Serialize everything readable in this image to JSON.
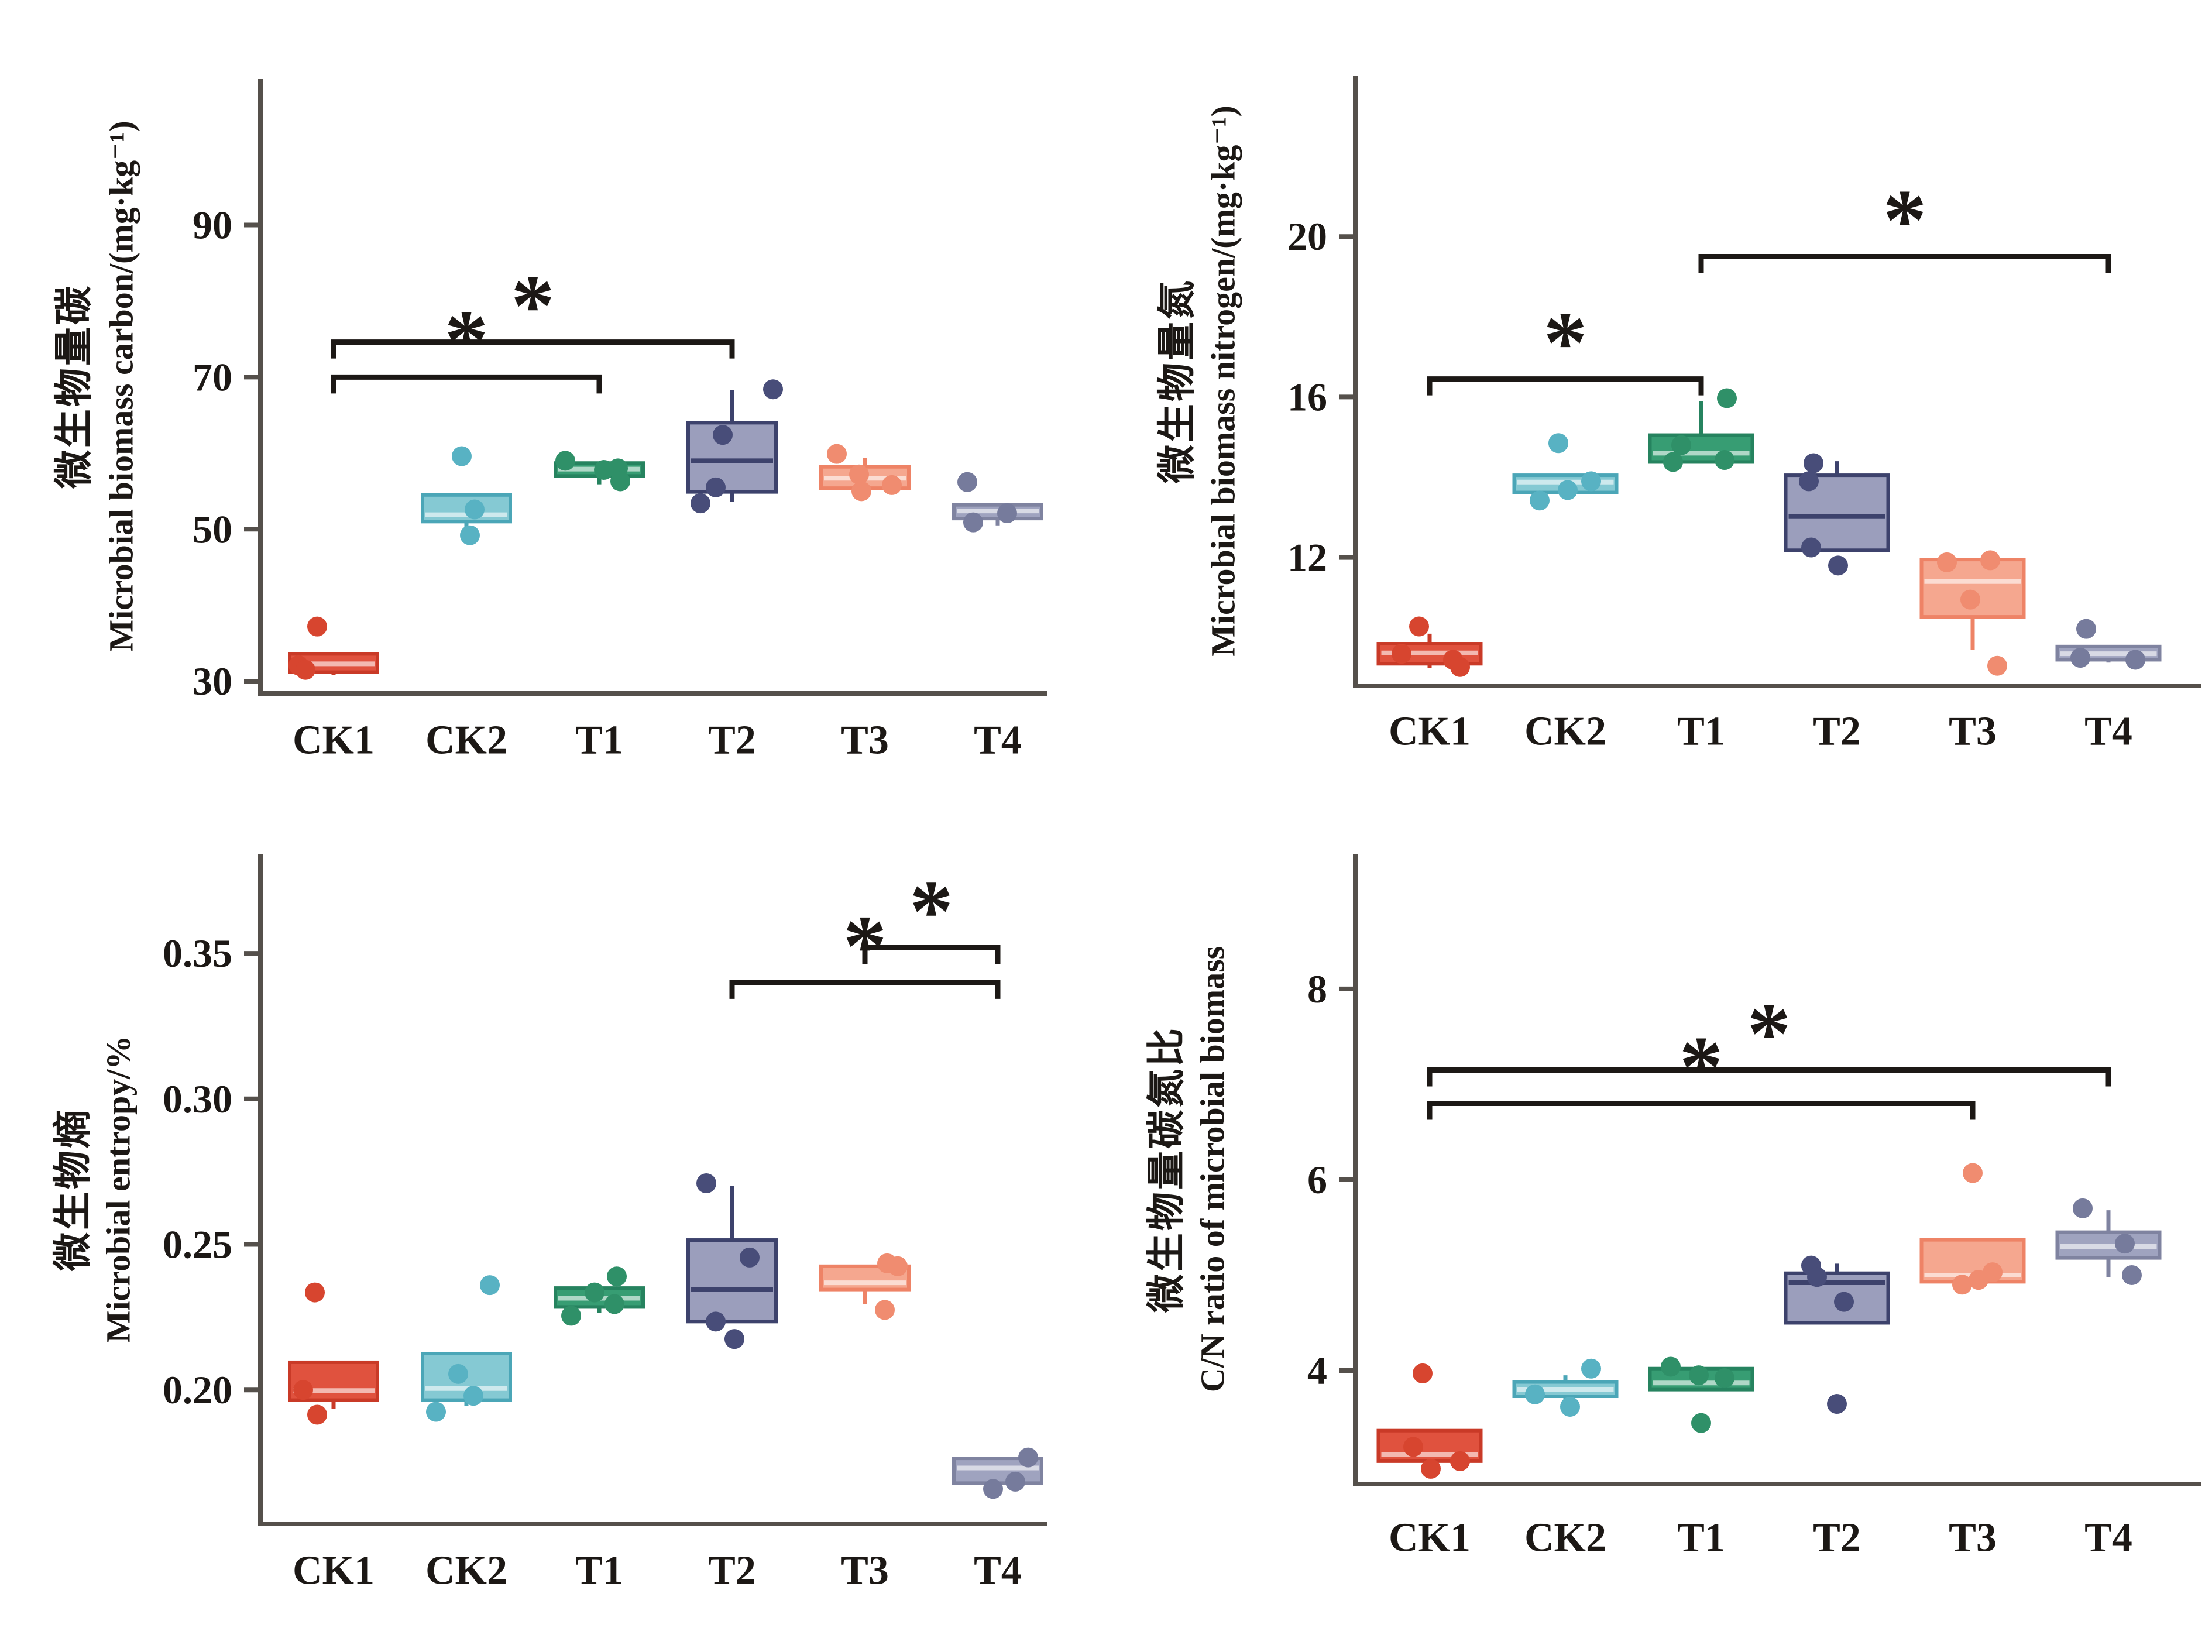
{
  "figure_name": "soil-microbial-biomass-boxplot-grid",
  "palette": {
    "ck1": {
      "fill": "#e0523e",
      "stroke": "#c93a27",
      "point": "#d7452f",
      "median": "light"
    },
    "ck2": {
      "fill": "#85c9d3",
      "stroke": "#4ba6b7",
      "point": "#58b2c3",
      "median": "light"
    },
    "t1": {
      "fill": "#379d73",
      "stroke": "#26835f",
      "point": "#2f9068",
      "median": "light"
    },
    "t2": {
      "fill": "#9b9ebc",
      "stroke": "#3d426c",
      "point": "#484d79",
      "median": "dark"
    },
    "t3": {
      "fill": "#f5a78f",
      "stroke": "#ee8366",
      "point": "#f08c70",
      "median": "light"
    },
    "t4": {
      "fill": "#9fa3bf",
      "stroke": "#7f83a0",
      "point": "#767b9c",
      "median": "light"
    }
  },
  "axis_color": "#55504b",
  "text_color": "#1c1815",
  "chart_data": [
    {
      "id": "biomass-carbon",
      "type": "boxplot",
      "title_zh": "微生物量碳",
      "ylabel": "Microbial biomass carbon/(mg·kg⁻¹)",
      "categories": [
        "CK1",
        "CK2",
        "T1",
        "T2",
        "T3",
        "T4"
      ],
      "ylim": [
        28.4,
        109.2
      ],
      "yticks": [
        30,
        50,
        70,
        90
      ],
      "ytick_labels": [
        "30",
        "50",
        "70",
        "90"
      ],
      "boxes": [
        {
          "cat": "CK1",
          "series": "ck1",
          "whisker_low": 30.8,
          "q1": 31.2,
          "median": 32.3,
          "q3": 33.6,
          "whisker_high": null,
          "points": [
            {
              "v": 37.2,
              "dx": -28
            },
            {
              "v": 32.1,
              "dx": -60
            },
            {
              "v": 31.5,
              "dx": -48
            }
          ]
        },
        {
          "cat": "CK2",
          "series": "ck2",
          "whisker_low": 49.7,
          "q1": 51.0,
          "median": 51.9,
          "q3": 54.5,
          "whisker_high": null,
          "points": [
            {
              "v": 59.6,
              "dx": -8
            },
            {
              "v": 52.6,
              "dx": 14
            },
            {
              "v": 49.2,
              "dx": 6
            }
          ]
        },
        {
          "cat": "T1",
          "series": "t1",
          "whisker_low": 55.9,
          "q1": 57.0,
          "median": 57.9,
          "q3": 58.7,
          "whisker_high": null,
          "points": [
            {
              "v": 59.0,
              "dx": -58
            },
            {
              "v": 58.0,
              "dx": 32
            },
            {
              "v": 56.3,
              "dx": 36
            },
            {
              "v": 57.8,
              "dx": 8
            }
          ]
        },
        {
          "cat": "T2",
          "series": "t2",
          "whisker_low": 53.6,
          "q1": 54.9,
          "median": 59.0,
          "q3": 64.0,
          "whisker_high": 68.3,
          "points": [
            {
              "v": 68.4,
              "dx": 70
            },
            {
              "v": 62.4,
              "dx": -16
            },
            {
              "v": 55.5,
              "dx": -28
            },
            {
              "v": 53.4,
              "dx": -54
            }
          ]
        },
        {
          "cat": "T3",
          "series": "t3",
          "whisker_low": 54.9,
          "q1": 55.4,
          "median": 56.7,
          "q3": 58.2,
          "whisker_high": 59.4,
          "points": [
            {
              "v": 59.9,
              "dx": -48
            },
            {
              "v": 57.2,
              "dx": -10
            },
            {
              "v": 55.0,
              "dx": -6
            },
            {
              "v": 55.8,
              "dx": 46
            }
          ]
        },
        {
          "cat": "T4",
          "series": "t4",
          "whisker_low": 50.5,
          "q1": 51.4,
          "median": 52.4,
          "q3": 53.2,
          "whisker_high": null,
          "points": [
            {
              "v": 56.2,
              "dx": -52
            },
            {
              "v": 50.9,
              "dx": -42
            },
            {
              "v": 52.1,
              "dx": 16
            }
          ]
        }
      ],
      "significance": [
        {
          "from": "CK1",
          "to": "T1",
          "at_y": 70.0,
          "label": "*"
        },
        {
          "from": "CK1",
          "to": "T2",
          "at_y": 74.6,
          "label": "*"
        }
      ]
    },
    {
      "id": "biomass-nitrogen",
      "type": "boxplot",
      "title_zh": "微生物量氮",
      "ylabel": "Microbial biomass nitrogen/(mg·kg⁻¹)",
      "categories": [
        "CK1",
        "CK2",
        "T1",
        "T2",
        "T3",
        "T4"
      ],
      "ylim": [
        8.8,
        24.0
      ],
      "yticks": [
        12,
        16,
        20
      ],
      "ytick_labels": [
        "12",
        "16",
        "20"
      ],
      "boxes": [
        {
          "cat": "CK1",
          "series": "ck1",
          "whisker_low": 9.25,
          "q1": 9.35,
          "median": 9.62,
          "q3": 9.85,
          "whisker_high": 10.1,
          "points": [
            {
              "v": 10.28,
              "dx": -18
            },
            {
              "v": 9.6,
              "dx": -48
            },
            {
              "v": 9.45,
              "dx": 40
            },
            {
              "v": 9.27,
              "dx": 52
            }
          ]
        },
        {
          "cat": "CK2",
          "series": "ck2",
          "whisker_low": 13.5,
          "q1": 13.62,
          "median": 13.88,
          "q3": 14.05,
          "whisker_high": null,
          "points": [
            {
              "v": 14.85,
              "dx": -12
            },
            {
              "v": 13.42,
              "dx": -44
            },
            {
              "v": 13.68,
              "dx": 4
            },
            {
              "v": 13.9,
              "dx": 44
            }
          ]
        },
        {
          "cat": "T1",
          "series": "t1",
          "whisker_low": null,
          "q1": 14.38,
          "median": 14.6,
          "q3": 15.05,
          "whisker_high": 15.9,
          "points": [
            {
              "v": 15.97,
              "dx": 44
            },
            {
              "v": 14.8,
              "dx": -34
            },
            {
              "v": 14.38,
              "dx": -48
            },
            {
              "v": 14.43,
              "dx": 40
            }
          ]
        },
        {
          "cat": "T2",
          "series": "t2",
          "whisker_low": null,
          "q1": 12.18,
          "median": 13.02,
          "q3": 14.05,
          "whisker_high": 14.4,
          "points": [
            {
              "v": 14.35,
              "dx": -40
            },
            {
              "v": 13.9,
              "dx": -48
            },
            {
              "v": 12.25,
              "dx": -44
            },
            {
              "v": 11.8,
              "dx": 2
            }
          ]
        },
        {
          "cat": "T3",
          "series": "t3",
          "whisker_low": 9.7,
          "q1": 10.52,
          "median": 11.4,
          "q3": 11.95,
          "whisker_high": null,
          "points": [
            {
              "v": 11.88,
              "dx": -44
            },
            {
              "v": 11.93,
              "dx": 30
            },
            {
              "v": 10.95,
              "dx": -4
            },
            {
              "v": 9.3,
              "dx": 42
            }
          ]
        },
        {
          "cat": "T4",
          "series": "t4",
          "whisker_low": 9.38,
          "q1": 9.45,
          "median": 9.6,
          "q3": 9.78,
          "whisker_high": null,
          "points": [
            {
              "v": 10.22,
              "dx": -38
            },
            {
              "v": 9.5,
              "dx": -48
            },
            {
              "v": 9.45,
              "dx": 46
            }
          ]
        }
      ],
      "significance": [
        {
          "from": "CK1",
          "to": "T1",
          "at_y": 16.45,
          "label": "*"
        },
        {
          "from": "T1",
          "to": "T4",
          "at_y": 19.5,
          "label": "*"
        }
      ]
    },
    {
      "id": "microbial-entropy",
      "type": "boxplot",
      "title_zh": "微生物熵",
      "ylabel": "Microbial entropy/%",
      "categories": [
        "CK1",
        "CK2",
        "T1",
        "T2",
        "T3",
        "T4"
      ],
      "ylim": [
        0.154,
        0.384
      ],
      "yticks": [
        0.2,
        0.25,
        0.3,
        0.35
      ],
      "ytick_labels": [
        "0.20",
        "0.25",
        "0.30",
        "0.35"
      ],
      "boxes": [
        {
          "cat": "CK1",
          "series": "ck1",
          "whisker_low": 0.1935,
          "q1": 0.1965,
          "median": 0.1998,
          "q3": 0.2095,
          "whisker_high": null,
          "points": [
            {
              "v": 0.2335,
              "dx": -32
            },
            {
              "v": 0.2,
              "dx": -52
            },
            {
              "v": 0.1915,
              "dx": -28
            }
          ]
        },
        {
          "cat": "CK2",
          "series": "ck2",
          "whisker_low": 0.1945,
          "q1": 0.1965,
          "median": 0.2005,
          "q3": 0.2125,
          "whisker_high": null,
          "points": [
            {
              "v": 0.236,
              "dx": 40
            },
            {
              "v": 0.2055,
              "dx": -14
            },
            {
              "v": 0.198,
              "dx": 12
            },
            {
              "v": 0.1925,
              "dx": -52
            }
          ]
        },
        {
          "cat": "T1",
          "series": "t1",
          "whisker_low": 0.2265,
          "q1": 0.2285,
          "median": 0.2315,
          "q3": 0.235,
          "whisker_high": null,
          "points": [
            {
              "v": 0.239,
              "dx": 30
            },
            {
              "v": 0.2335,
              "dx": -8
            },
            {
              "v": 0.2295,
              "dx": 26
            },
            {
              "v": 0.2255,
              "dx": -48
            }
          ]
        },
        {
          "cat": "T2",
          "series": "t2",
          "whisker_low": null,
          "q1": 0.2235,
          "median": 0.2345,
          "q3": 0.2515,
          "whisker_high": 0.27,
          "points": [
            {
              "v": 0.271,
              "dx": -44
            },
            {
              "v": 0.2455,
              "dx": 30
            },
            {
              "v": 0.2235,
              "dx": -28
            },
            {
              "v": 0.2175,
              "dx": 4
            }
          ]
        },
        {
          "cat": "T3",
          "series": "t3",
          "whisker_low": 0.2295,
          "q1": 0.2345,
          "median": 0.2368,
          "q3": 0.2425,
          "whisker_high": null,
          "points": [
            {
              "v": 0.2435,
              "dx": 38
            },
            {
              "v": 0.2425,
              "dx": 56
            },
            {
              "v": 0.2275,
              "dx": 34
            }
          ]
        },
        {
          "cat": "T4",
          "series": "t4",
          "whisker_low": null,
          "q1": 0.168,
          "median": 0.1732,
          "q3": 0.1765,
          "whisker_high": null,
          "points": [
            {
              "v": 0.1768,
              "dx": 52
            },
            {
              "v": 0.166,
              "dx": -8
            },
            {
              "v": 0.1685,
              "dx": 30
            }
          ]
        }
      ],
      "significance": [
        {
          "from": "T2",
          "to": "T4",
          "at_y": 0.34,
          "label": "*"
        },
        {
          "from": "T3",
          "to": "T4",
          "at_y": 0.352,
          "label": "*"
        }
      ]
    },
    {
      "id": "cn-ratio",
      "type": "boxplot",
      "title_zh": "微生物量碳氮比",
      "ylabel": "C/N ratio of microbial biomass",
      "categories": [
        "CK1",
        "CK2",
        "T1",
        "T2",
        "T3",
        "T4"
      ],
      "ylim": [
        2.81,
        9.41
      ],
      "yticks": [
        4,
        6,
        8
      ],
      "ytick_labels": [
        "4",
        "6",
        "8"
      ],
      "boxes": [
        {
          "cat": "CK1",
          "series": "ck1",
          "whisker_low": 2.97,
          "q1": 3.05,
          "median": 3.12,
          "q3": 3.37,
          "whisker_high": null,
          "points": [
            {
              "v": 3.97,
              "dx": -12
            },
            {
              "v": 3.2,
              "dx": -28
            },
            {
              "v": 2.97,
              "dx": 2
            },
            {
              "v": 3.05,
              "dx": 52
            }
          ]
        },
        {
          "cat": "CK2",
          "series": "ck2",
          "whisker_low": 3.62,
          "q1": 3.73,
          "median": 3.8,
          "q3": 3.88,
          "whisker_high": 3.95,
          "points": [
            {
              "v": 4.02,
              "dx": 44
            },
            {
              "v": 3.62,
              "dx": 8
            },
            {
              "v": 3.75,
              "dx": -52
            }
          ]
        },
        {
          "cat": "T1",
          "series": "t1",
          "whisker_low": null,
          "q1": 3.8,
          "median": 3.87,
          "q3": 4.02,
          "whisker_high": null,
          "points": [
            {
              "v": 4.04,
              "dx": -52
            },
            {
              "v": 3.95,
              "dx": -4
            },
            {
              "v": 3.92,
              "dx": 40
            },
            {
              "v": 3.45,
              "dx": 0
            }
          ]
        },
        {
          "cat": "T2",
          "series": "t2",
          "whisker_low": null,
          "q1": 4.5,
          "median": 4.92,
          "q3": 5.02,
          "whisker_high": 5.12,
          "points": [
            {
              "v": 5.1,
              "dx": -44
            },
            {
              "v": 4.98,
              "dx": -34
            },
            {
              "v": 4.72,
              "dx": 12
            },
            {
              "v": 3.65,
              "dx": 0
            }
          ]
        },
        {
          "cat": "T3",
          "series": "t3",
          "whisker_low": null,
          "q1": 4.93,
          "median": 5.0,
          "q3": 5.37,
          "whisker_high": null,
          "points": [
            {
              "v": 6.07,
              "dx": 0
            },
            {
              "v": 5.03,
              "dx": 34
            },
            {
              "v": 4.9,
              "dx": -18
            },
            {
              "v": 4.95,
              "dx": 10
            }
          ]
        },
        {
          "cat": "T4",
          "series": "t4",
          "whisker_low": 4.98,
          "q1": 5.18,
          "median": 5.3,
          "q3": 5.45,
          "whisker_high": 5.68,
          "points": [
            {
              "v": 5.7,
              "dx": -44
            },
            {
              "v": 5.33,
              "dx": 28
            },
            {
              "v": 5.0,
              "dx": 40
            }
          ]
        }
      ],
      "significance": [
        {
          "from": "CK1",
          "to": "T3",
          "at_y": 6.8,
          "label": "*"
        },
        {
          "from": "CK1",
          "to": "T4",
          "at_y": 7.15,
          "label": "*"
        }
      ]
    }
  ]
}
